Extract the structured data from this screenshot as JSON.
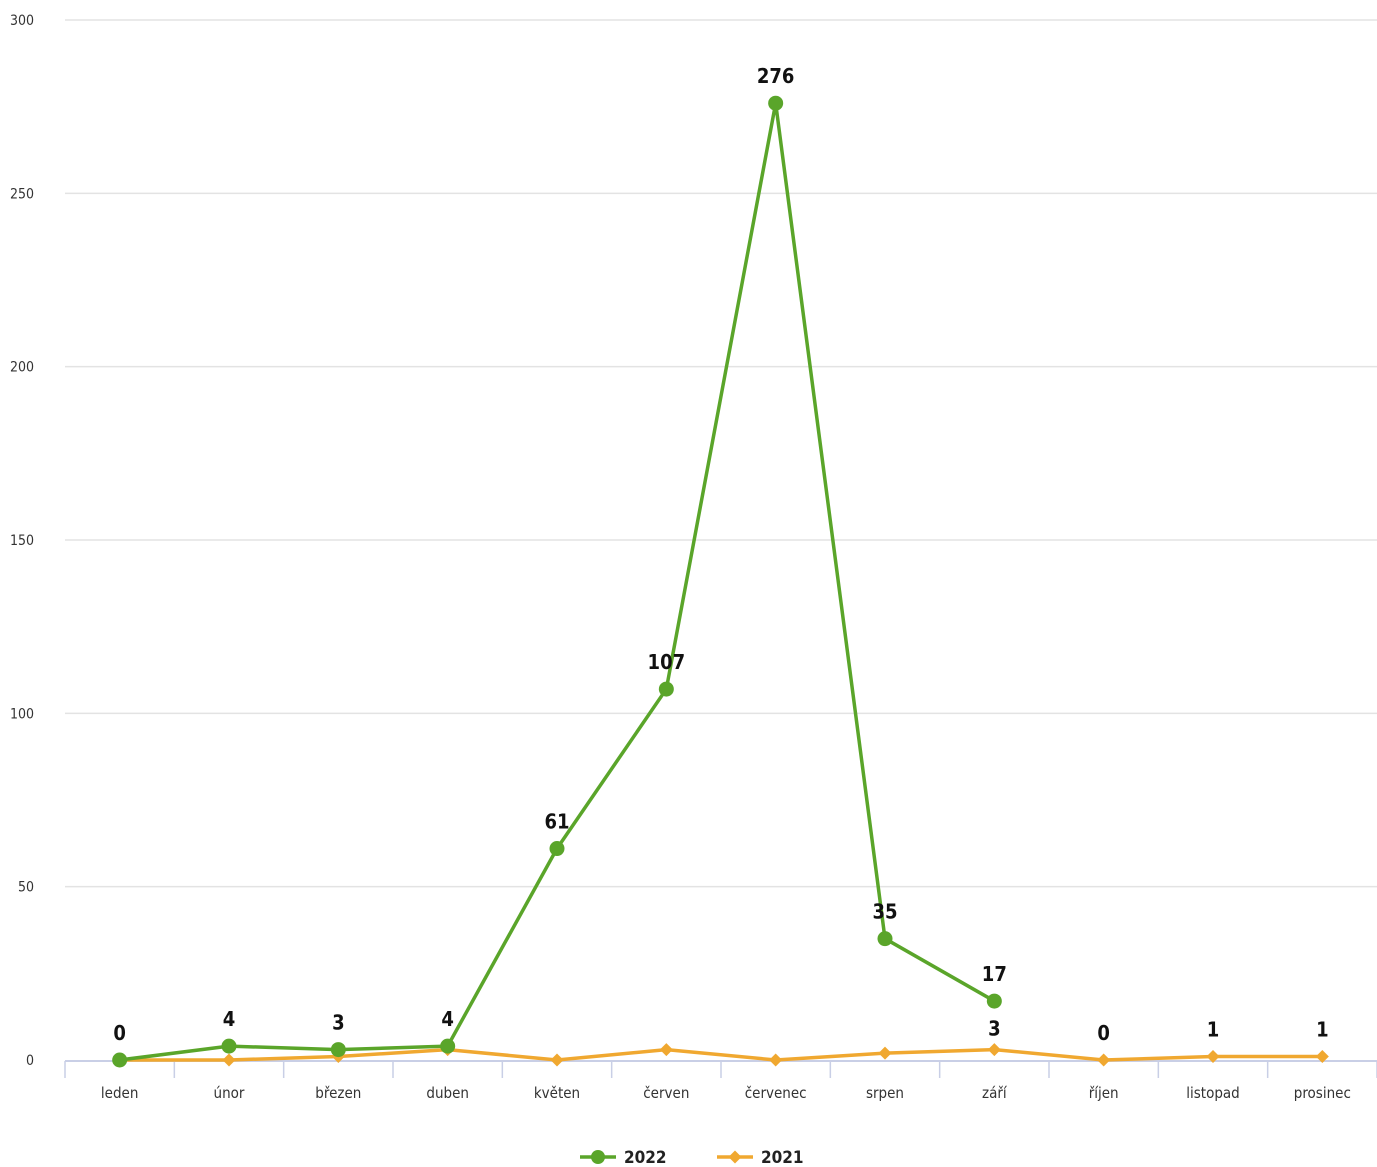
{
  "chart_data": {
    "type": "line",
    "categories": [
      "leden",
      "únor",
      "březen",
      "duben",
      "květen",
      "červen",
      "červenec",
      "srpen",
      "září",
      "říjen",
      "listopad",
      "prosinec"
    ],
    "series": [
      {
        "name": "2022",
        "color": "#5aa52a",
        "marker": "circle",
        "values": [
          0,
          4,
          3,
          4,
          61,
          107,
          276,
          35,
          17,
          null,
          null,
          null
        ]
      },
      {
        "name": "2021",
        "color": "#f0a830",
        "marker": "diamond",
        "values": [
          0,
          0,
          1,
          3,
          0,
          3,
          0,
          2,
          3,
          0,
          1,
          1
        ]
      }
    ],
    "data_labels": [
      "0",
      "4",
      "3",
      "4",
      "61",
      "107",
      "276",
      "35",
      "17",
      "0",
      "1",
      "1"
    ],
    "ylim": [
      0,
      300
    ],
    "yticks": [
      0,
      50,
      100,
      150,
      200,
      250,
      300
    ],
    "xlabel": "",
    "ylabel": "",
    "grid": true,
    "legend_position": "bottom-center"
  }
}
